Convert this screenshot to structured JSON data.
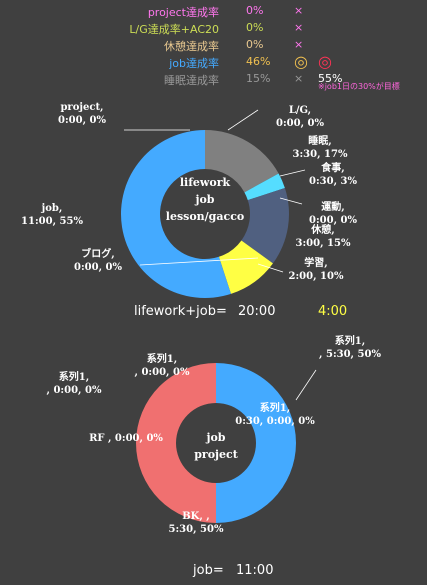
{
  "stats": [
    {
      "label": "project達成率",
      "value": "0%",
      "mark": "×",
      "extra": "",
      "label_color": "#ff77ee",
      "value_color": "#ff77ee",
      "mark_color": "#ff77ee",
      "extra_color": "#ffffff"
    },
    {
      "label": "L/G達成率+AC20",
      "value": "0%",
      "mark": "×",
      "extra": "",
      "label_color": "#ccdd55",
      "value_color": "#ccdd55",
      "mark_color": "#ff77ee",
      "extra_color": "#ffffff"
    },
    {
      "label": "休憩達成率",
      "value": "0%",
      "mark": "×",
      "extra": "",
      "label_color": "#e8c890",
      "value_color": "#e8c890",
      "mark_color": "#ff77ee",
      "extra_color": "#ffffff"
    },
    {
      "label": "job達成率",
      "value": "46%",
      "mark": "◎",
      "extra": "◎",
      "label_color": "#44aaff",
      "value_color": "#f0c050",
      "mark_color": "#f0c050",
      "extra_color": "#ff3355"
    },
    {
      "label": "睡眠達成率",
      "value": "15%",
      "mark": "×",
      "extra": "55%",
      "label_color": "#999999",
      "value_color": "#999999",
      "mark_color": "#999999",
      "extra_color": "#ffffff"
    }
  ],
  "note": "※job1日の30%が目標",
  "summary1": {
    "label": "lifework+job=",
    "value": "20:00",
    "extra": "4:00"
  },
  "summary2": {
    "label": "job=",
    "value": "11:00"
  },
  "chart_data": [
    {
      "type": "pie",
      "center_text": [
        "lifework",
        "job",
        "lesson/gacco"
      ],
      "slices": [
        {
          "label": "L/G, 0:00, 0%",
          "value": 0,
          "color": "#808080"
        },
        {
          "label": "睡眠, 3:30, 17%",
          "value": 17,
          "color": "#808080"
        },
        {
          "label": "食事, 0:30, 3%",
          "value": 3,
          "color": "#55ddff"
        },
        {
          "label": "運動, 0:00, 0%",
          "value": 0,
          "color": "#506080"
        },
        {
          "label": "休憩, 3:00, 15%",
          "value": 15,
          "color": "#506080"
        },
        {
          "label": "学習, 2:00, 10%",
          "value": 10,
          "color": "#ffff44"
        },
        {
          "label": "ブログ, 0:00, 0%",
          "value": 0,
          "color": "#ffff44"
        },
        {
          "label": "job, 11:00, 55%",
          "value": 55,
          "color": "#44aaff"
        },
        {
          "label": "project, 0:00, 0%",
          "value": 0,
          "color": "#44aaff"
        }
      ]
    },
    {
      "type": "pie",
      "center_text": [
        "job",
        "project"
      ],
      "slices": [
        {
          "label": "系列1, , 5:30, 50%",
          "value": 50,
          "color": "#44aaff"
        },
        {
          "label": "系列1, 0:30, 0:00, 0%",
          "value": 0,
          "color": "#44aaff"
        },
        {
          "label": "BK, , 5:30, 50%",
          "value": 50,
          "color": "#f07070"
        },
        {
          "label": "RF , 0:00, 0%",
          "value": 0,
          "color": "#f07070"
        },
        {
          "label": "系列1, , 0:00, 0%",
          "value": 0,
          "color": "#f07070"
        },
        {
          "label": "系列1, , 0:00, 0%",
          "value": 0,
          "color": "#f07070"
        }
      ]
    }
  ]
}
